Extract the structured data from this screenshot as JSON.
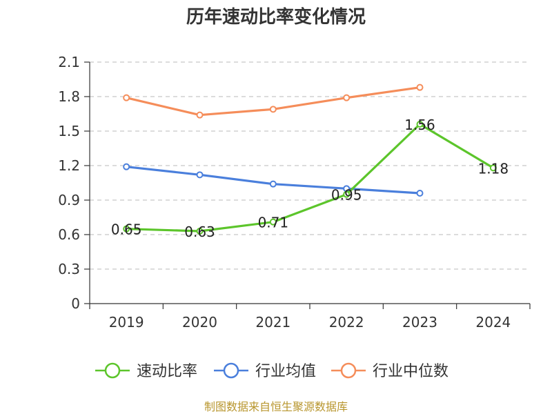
{
  "chart_data": {
    "type": "line",
    "title": "历年速动比率变化情况",
    "categories": [
      "2019",
      "2020",
      "2021",
      "2022",
      "2023",
      "2024"
    ],
    "ylim": [
      0,
      2.1
    ],
    "yticks": [
      "0",
      "0.3",
      "0.6",
      "0.9",
      "1.2",
      "1.5",
      "1.8",
      "2.1"
    ],
    "grid": true,
    "legend_position": "bottom",
    "series": [
      {
        "name": "速动比率",
        "color": "#5cc52b",
        "values": [
          0.65,
          0.63,
          0.71,
          0.95,
          1.56,
          1.18
        ],
        "labels": [
          "0.65",
          "0.63",
          "0.71",
          "0.95",
          "1.56",
          "1.18"
        ]
      },
      {
        "name": "行业均值",
        "color": "#4a7fdc",
        "values": [
          1.19,
          1.12,
          1.04,
          1.0,
          0.96,
          null
        ]
      },
      {
        "name": "行业中位数",
        "color": "#f58d5a",
        "values": [
          1.79,
          1.64,
          1.69,
          1.79,
          1.88,
          null
        ]
      }
    ]
  },
  "source": "制图数据来自恒生聚源数据库"
}
